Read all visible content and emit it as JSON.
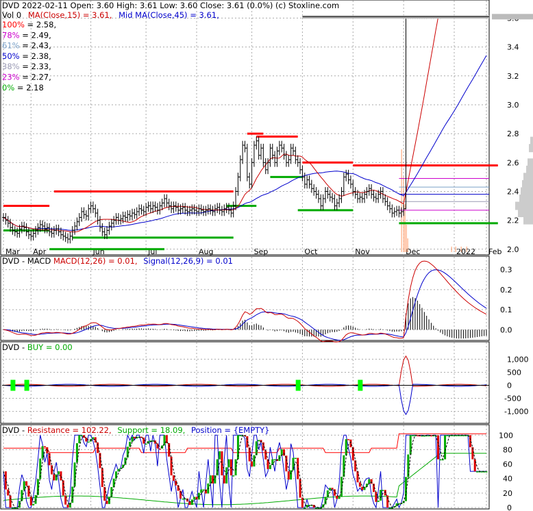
{
  "colors": {
    "price": "#000000",
    "ma15": "#cc0000",
    "ma45": "#0000cc",
    "fib100": "#ff0000",
    "fib78": "#cc00cc",
    "fib61": "#7aa0c8",
    "fib50": "#0000cc",
    "fib38": "#9a9ab4",
    "fib23": "#cc00cc",
    "fib0": "#00aa00",
    "resistance": "#ff0000",
    "support": "#00aa00",
    "macd": "#cc0000",
    "signal": "#0000cc",
    "buy_marker": "#00ff00",
    "volume": "#ff9966",
    "grid": "#aaaaaa"
  },
  "header": {
    "line1": "DVD  2022-02-11 Open: 3.60  High: 3.61  Low: 3.60  Close: 3.61 (0.0%)  (c) Stoxline.com",
    "vol": "Vol 0",
    "ma15": "MA(Close,15) = 3.61,",
    "ma45": "Mid MA(Close,45) = 3.61,"
  },
  "fib_labels": [
    {
      "pct": "100%",
      "text": "= 2.58,",
      "color": "#ff0000"
    },
    {
      "pct": "78%",
      "text": "= 2.49,",
      "color": "#cc00cc"
    },
    {
      "pct": "61%",
      "text": "= 2.43,",
      "color": "#7aa0c8"
    },
    {
      "pct": "50%",
      "text": "= 2.38,",
      "color": "#0000cc"
    },
    {
      "pct": "38%",
      "text": "= 2.33,",
      "color": "#9a9ab4"
    },
    {
      "pct": "23%",
      "text": "= 2.27,",
      "color": "#cc00cc"
    },
    {
      "pct": "0%",
      "text": "= 2.18",
      "color": "#00aa00"
    }
  ],
  "chart_data": [
    {
      "type": "ohlc",
      "panel": "price",
      "x_ticks": [
        "Mar",
        "Apr",
        "Jun",
        "Jul",
        "Aug",
        "Sep",
        "Oct",
        "Nov",
        "Dec",
        "2022",
        "Feb"
      ],
      "y_ticks": [
        "2.0",
        "2.2",
        "2.4",
        "2.6",
        "2.8",
        "3.0",
        "3.2",
        "3.4",
        "3.6"
      ],
      "ylim": [
        1.98,
        3.64
      ],
      "close": [
        2.22,
        2.2,
        2.18,
        2.15,
        2.13,
        2.12,
        2.11,
        2.14,
        2.16,
        2.15,
        2.12,
        2.1,
        2.09,
        2.11,
        2.13,
        2.15,
        2.17,
        2.16,
        2.14,
        2.15,
        2.12,
        2.11,
        2.13,
        2.14,
        2.12,
        2.1,
        2.09,
        2.08,
        2.07,
        2.09,
        2.13,
        2.16,
        2.19,
        2.22,
        2.26,
        2.24,
        2.23,
        2.28,
        2.3,
        2.28,
        2.25,
        2.2,
        2.15,
        2.12,
        2.1,
        2.13,
        2.16,
        2.18,
        2.2,
        2.22,
        2.2,
        2.21,
        2.23,
        2.22,
        2.24,
        2.23,
        2.25,
        2.24,
        2.26,
        2.28,
        2.27,
        2.26,
        2.29,
        2.3,
        2.28,
        2.3,
        2.29,
        2.27,
        2.3,
        2.32,
        2.35,
        2.32,
        2.3,
        2.28,
        2.3,
        2.29,
        2.27,
        2.28,
        2.29,
        2.27,
        2.26,
        2.27,
        2.28,
        2.27,
        2.26,
        2.28,
        2.27,
        2.26,
        2.27,
        2.28,
        2.27,
        2.26,
        2.28,
        2.29,
        2.27,
        2.26,
        2.28,
        2.29,
        2.27,
        2.25,
        2.3,
        2.4,
        2.5,
        2.62,
        2.72,
        2.7,
        2.5,
        2.45,
        2.6,
        2.72,
        2.75,
        2.65,
        2.7,
        2.6,
        2.55,
        2.6,
        2.7,
        2.65,
        2.6,
        2.68,
        2.72,
        2.7,
        2.65,
        2.6,
        2.62,
        2.7,
        2.68,
        2.62,
        2.6,
        2.55,
        2.5,
        2.45,
        2.48,
        2.45,
        2.42,
        2.4,
        2.38,
        2.35,
        2.3,
        2.35,
        2.4,
        2.38,
        2.36,
        2.35,
        2.3,
        2.32,
        2.35,
        2.4,
        2.5,
        2.52,
        2.48,
        2.45,
        2.4,
        2.38,
        2.35,
        2.36,
        2.35,
        2.38,
        2.4,
        2.42,
        2.38,
        2.36,
        2.35,
        2.38,
        2.4,
        2.35,
        2.33,
        2.3,
        2.28,
        2.25,
        2.26,
        2.27,
        2.25,
        2.26,
        2.28,
        3.6,
        3.6,
        3.6,
        3.6,
        3.61,
        3.6,
        3.6,
        3.61,
        3.6,
        3.61,
        3.61,
        3.6,
        3.61,
        3.61,
        3.6,
        3.61,
        3.61,
        3.61,
        3.61,
        3.61,
        3.61,
        3.61,
        3.61,
        3.61,
        3.61,
        3.61,
        3.61,
        3.61,
        3.61,
        3.61,
        3.61,
        3.61,
        3.61,
        3.61,
        3.61,
        3.61
      ],
      "fib_levels": [
        2.58,
        2.49,
        2.43,
        2.38,
        2.33,
        2.27,
        2.18
      ],
      "ma15_last": 3.61,
      "ma45_last": 3.61
    },
    {
      "type": "line",
      "panel": "macd",
      "label": "DVD - MACD",
      "macd_text": "MACD(12,26) = 0.01,",
      "signal_text": "Signal(12,26,9) = 0.01",
      "y_ticks": [
        "0.0",
        "0.1",
        "0.2",
        "0.3"
      ],
      "ylim": [
        -0.04,
        0.34
      ],
      "macd_last": 0.01,
      "signal_last": 0.01
    },
    {
      "type": "line",
      "panel": "buy",
      "label": "DVD - ",
      "buy_text": "BUY = 0.00",
      "y_ticks": [
        "1,000",
        "500",
        "0",
        "-500",
        "-1,000"
      ],
      "ylim": [
        -1300,
        1300
      ],
      "buy_last": 0.0
    },
    {
      "type": "line",
      "panel": "stoch",
      "label": "DVD - ",
      "resistance_text": "Resistance = 102.22,",
      "support_text": "Support = 18.09,",
      "position_text": "Position = {EMPTY}",
      "y_ticks": [
        "100",
        "80",
        "60",
        "40",
        "20",
        "0"
      ],
      "ylim": [
        0,
        105
      ],
      "resistance_last": 102.22,
      "support_last": 18.09
    }
  ]
}
